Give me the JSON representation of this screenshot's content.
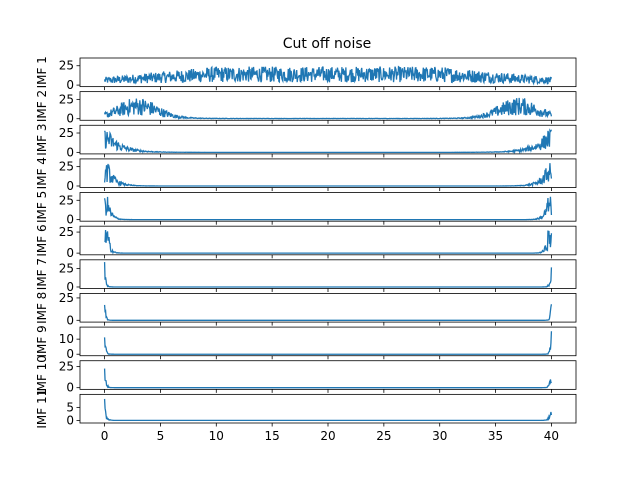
{
  "chart_data": {
    "type": "line",
    "title": "Cut off noise",
    "xlim": [
      -2.2,
      42.2
    ],
    "x_ticks": [
      0,
      5,
      10,
      15,
      20,
      25,
      30,
      35,
      40
    ],
    "line_color": "#1f77b4",
    "x_range": [
      0,
      40
    ],
    "panels": [
      {
        "ylabel": "IMF 1",
        "ylim": [
          -2,
          35
        ],
        "yticks": [
          0,
          25
        ],
        "peak": 30,
        "shape": "broad"
      },
      {
        "ylabel": "IMF 2",
        "ylim": [
          -2,
          35
        ],
        "yticks": [
          0,
          25
        ],
        "peak": 30,
        "shape": "humps"
      },
      {
        "ylabel": "IMF 3",
        "ylim": [
          -2,
          35
        ],
        "yticks": [
          0,
          25
        ],
        "peak": 30,
        "shape": "edge",
        "decay": 1.3
      },
      {
        "ylabel": "IMF 4",
        "ylim": [
          -2,
          35
        ],
        "yticks": [
          0,
          25
        ],
        "peak": 30,
        "shape": "edge",
        "decay": 0.7
      },
      {
        "ylabel": "IMF 5",
        "ylim": [
          -2,
          35
        ],
        "yticks": [
          0,
          25
        ],
        "peak": 30,
        "shape": "edge",
        "decay": 0.35
      },
      {
        "ylabel": "IMF 6",
        "ylim": [
          -2,
          32
        ],
        "yticks": [
          0,
          25
        ],
        "peak": 30,
        "shape": "edge",
        "decay": 0.22
      },
      {
        "ylabel": "IMF 7",
        "ylim": [
          -2,
          37
        ],
        "yticks": [
          0,
          25
        ],
        "peak": 35,
        "shape": "spike",
        "decay": 0.12
      },
      {
        "ylabel": "IMF 8",
        "ylim": [
          -2,
          30
        ],
        "yticks": [
          0,
          25
        ],
        "peak": 28,
        "shape": "spike",
        "decay": 0.1
      },
      {
        "ylabel": "IMF 9",
        "ylim": [
          -1,
          18
        ],
        "yticks": [
          0,
          10
        ],
        "peak": 17,
        "shape": "spike",
        "decay": 0.1
      },
      {
        "ylabel": "IMF 10",
        "ylim": [
          -2,
          32
        ],
        "yticks": [
          0,
          25
        ],
        "peak": 30,
        "shape": "spike",
        "decay": 0.12
      },
      {
        "ylabel": "IMF 11",
        "ylim": [
          -1,
          10
        ],
        "yticks": [
          0,
          5
        ],
        "peak": 9,
        "shape": "spike",
        "decay": 0.15
      }
    ]
  }
}
